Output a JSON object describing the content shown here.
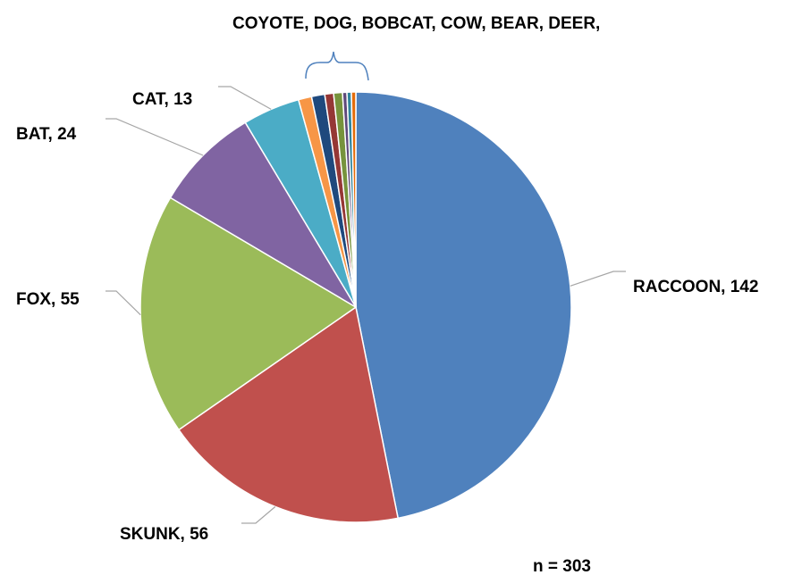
{
  "chart_data": {
    "type": "pie",
    "n_label": "n = 303",
    "group_label": "COYOTE, DOG, BOBCAT, COW, BEAR, DEER,",
    "slices": [
      {
        "name": "RACCOON",
        "value": 142,
        "label": "RACCOON, 142",
        "color": "#4F81BD"
      },
      {
        "name": "SKUNK",
        "value": 56,
        "label": "SKUNK, 56",
        "color": "#C0504D"
      },
      {
        "name": "FOX",
        "value": 55,
        "label": "FOX, 55",
        "color": "#9BBB59"
      },
      {
        "name": "BAT",
        "value": 24,
        "label": "BAT, 24",
        "color": "#8064A2"
      },
      {
        "name": "CAT",
        "value": 13,
        "label": "CAT, 13",
        "color": "#4BACC6"
      },
      {
        "name": "COYOTE",
        "value": 3,
        "label": "",
        "color": "#F79646"
      },
      {
        "name": "DOG",
        "value": 3,
        "label": "",
        "color": "#1F497D"
      },
      {
        "name": "BOBCAT",
        "value": 2,
        "label": "",
        "color": "#953735"
      },
      {
        "name": "COW",
        "value": 2,
        "label": "",
        "color": "#77933C"
      },
      {
        "name": "BEAR",
        "value": 1,
        "label": "",
        "color": "#5F497A"
      },
      {
        "name": "DEER",
        "value": 1,
        "label": "",
        "color": "#31859C"
      },
      {
        "name": "",
        "value": 1,
        "label": "",
        "color": "#E46C0A"
      }
    ]
  }
}
